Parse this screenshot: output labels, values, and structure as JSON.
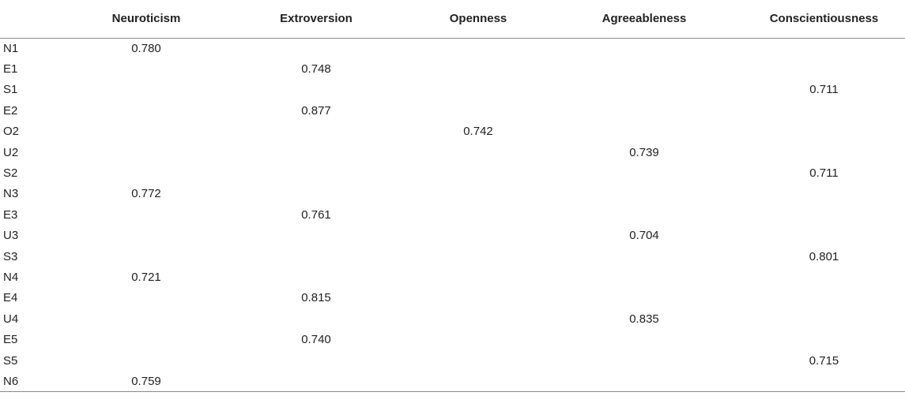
{
  "table": {
    "headers": [
      "",
      "Neuroticism",
      "Extroversion",
      "Openness",
      "Agreeableness",
      "Conscientiousness"
    ],
    "rows": [
      [
        "N1",
        "0.780",
        "",
        "",
        "",
        ""
      ],
      [
        "E1",
        "",
        "0.748",
        "",
        "",
        ""
      ],
      [
        "S1",
        "",
        "",
        "",
        "",
        "0.711"
      ],
      [
        "E2",
        "",
        "0.877",
        "",
        "",
        ""
      ],
      [
        "O2",
        "",
        "",
        "0.742",
        "",
        ""
      ],
      [
        "U2",
        "",
        "",
        "",
        "0.739",
        ""
      ],
      [
        "S2",
        "",
        "",
        "",
        "",
        "0.711"
      ],
      [
        "N3",
        "0.772",
        "",
        "",
        "",
        ""
      ],
      [
        "E3",
        "",
        "0.761",
        "",
        "",
        ""
      ],
      [
        "U3",
        "",
        "",
        "",
        "0.704",
        ""
      ],
      [
        "S3",
        "",
        "",
        "",
        "",
        "0.801"
      ],
      [
        "N4",
        "0.721",
        "",
        "",
        "",
        ""
      ],
      [
        "E4",
        "",
        "0.815",
        "",
        "",
        ""
      ],
      [
        "U4",
        "",
        "",
        "",
        "0.835",
        ""
      ],
      [
        "E5",
        "",
        "0.740",
        "",
        "",
        ""
      ],
      [
        "S5",
        "",
        "",
        "",
        "",
        "0.715"
      ],
      [
        "N6",
        "0.759",
        "",
        "",
        "",
        ""
      ]
    ]
  }
}
